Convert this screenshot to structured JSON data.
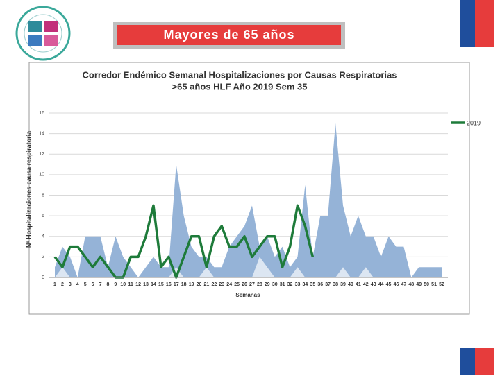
{
  "header": {
    "title": "Mayores de 65 años"
  },
  "chart_data": {
    "type": "area_line",
    "title": [
      "Corredor Endémico Semanal Hospitalizaciones por Causas Respiratorias",
      ">65 años HLF Año 2019 Sem 35"
    ],
    "y_label": "Nº Hospitalizaciones causa respiratoria",
    "x_label": "Semanas",
    "categories": [
      1,
      2,
      3,
      4,
      5,
      6,
      7,
      8,
      9,
      10,
      11,
      12,
      13,
      14,
      15,
      16,
      17,
      18,
      19,
      20,
      21,
      22,
      23,
      24,
      25,
      26,
      27,
      28,
      29,
      30,
      31,
      32,
      33,
      34,
      35,
      36,
      37,
      38,
      39,
      40,
      41,
      42,
      43,
      44,
      45,
      46,
      47,
      48,
      49,
      50,
      51,
      52
    ],
    "ylim": [
      0,
      16
    ],
    "yticks": [
      0,
      2,
      4,
      6,
      8,
      10,
      12,
      14,
      16
    ],
    "grid": true,
    "legend": "right",
    "series": [
      {
        "color": "#95b3d7",
        "kind": "area",
        "values": [
          1,
          3,
          2,
          0,
          4,
          4,
          4,
          1,
          4,
          2,
          1,
          0,
          1,
          2,
          1,
          1,
          11,
          6,
          3,
          2,
          2,
          1,
          1,
          3,
          4,
          5,
          7,
          3,
          4,
          2,
          3,
          1,
          2,
          9,
          2,
          6,
          6,
          15,
          7,
          4,
          6,
          4,
          4,
          2,
          4,
          3,
          3,
          0,
          1,
          1,
          1,
          1
        ]
      },
      {
        "color": "#dce6f2",
        "kind": "area",
        "values": [
          0,
          1,
          0,
          0,
          0,
          0,
          0,
          0,
          0,
          0,
          0,
          0,
          0,
          0,
          0,
          0,
          1,
          0,
          0,
          0,
          1,
          0,
          0,
          0,
          0,
          0,
          0,
          2,
          1,
          0,
          0,
          0,
          1,
          0,
          0,
          0,
          0,
          0,
          1,
          0,
          0,
          1,
          0,
          0,
          0,
          0,
          0,
          0,
          0,
          0,
          0,
          0
        ]
      },
      {
        "name": "2019",
        "color": "#1e7b3a",
        "kind": "line",
        "values": [
          2,
          1,
          3,
          3,
          2,
          1,
          2,
          1,
          0,
          0,
          2,
          2,
          4,
          7,
          1,
          2,
          0,
          2,
          4,
          4,
          1,
          4,
          5,
          3,
          3,
          4,
          2,
          3,
          4,
          4,
          1,
          3,
          7,
          5,
          2,
          null,
          null,
          null,
          null,
          null,
          null,
          null,
          null,
          null,
          null,
          null,
          null,
          null,
          null,
          null,
          null,
          null
        ]
      }
    ]
  }
}
